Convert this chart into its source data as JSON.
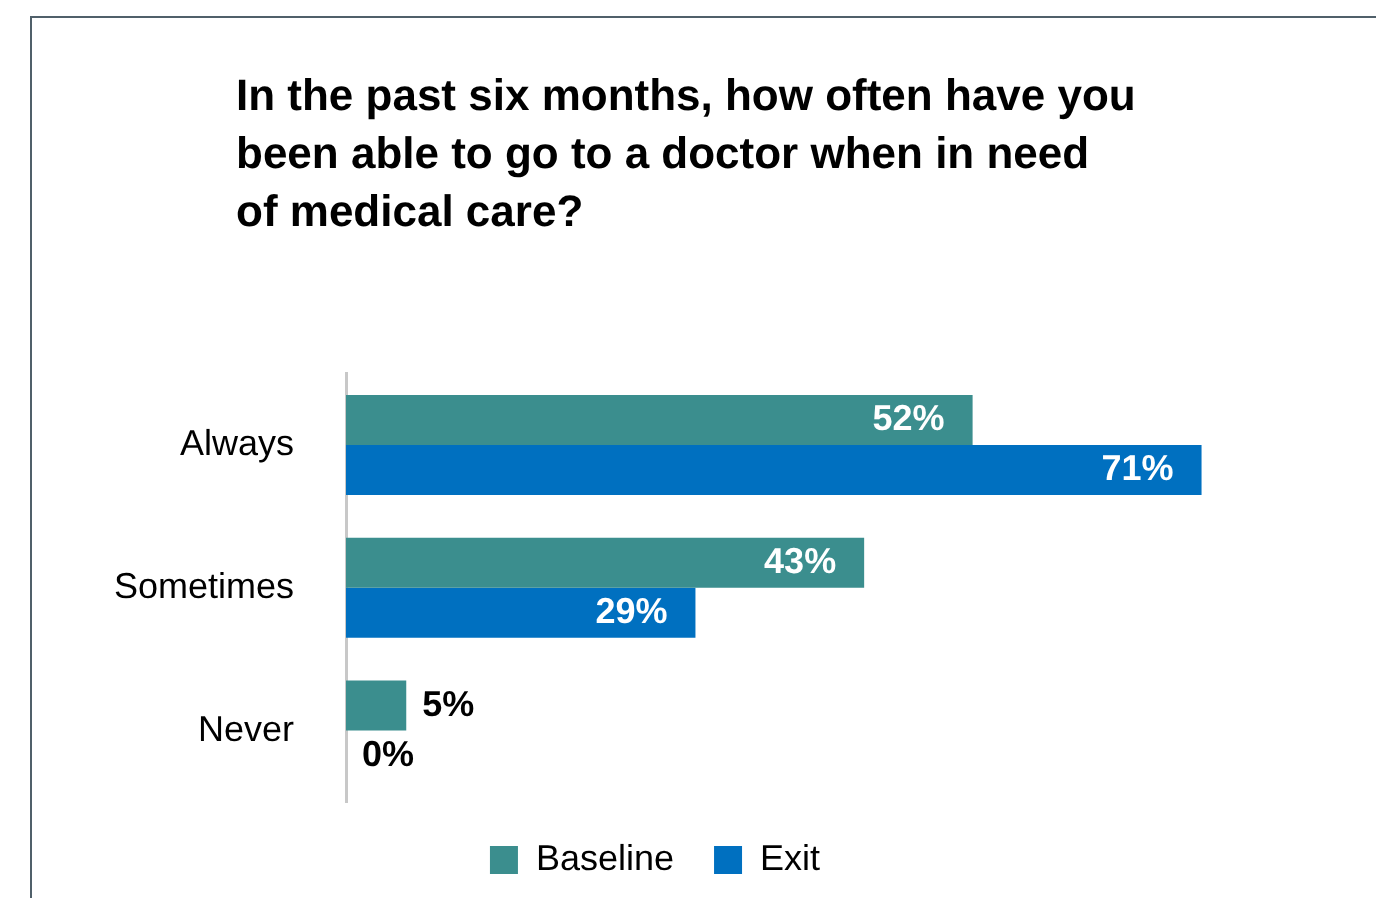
{
  "chart_data": {
    "type": "bar",
    "orientation": "horizontal",
    "title": "In the past six months, how often have you been able to go to a doctor when in need of medical care?",
    "categories": [
      "Always",
      "Sometimes",
      "Never"
    ],
    "series": [
      {
        "name": "Baseline",
        "color": "#3b8e8e",
        "values": [
          52,
          43,
          5
        ],
        "value_labels": [
          "52%",
          "43%",
          "5%"
        ]
      },
      {
        "name": "Exit",
        "color": "#0070c0",
        "values": [
          71,
          29,
          0
        ],
        "value_labels": [
          "71%",
          "29%",
          "0%"
        ]
      }
    ],
    "legend": "bottom",
    "tick_labels": "y"
  }
}
